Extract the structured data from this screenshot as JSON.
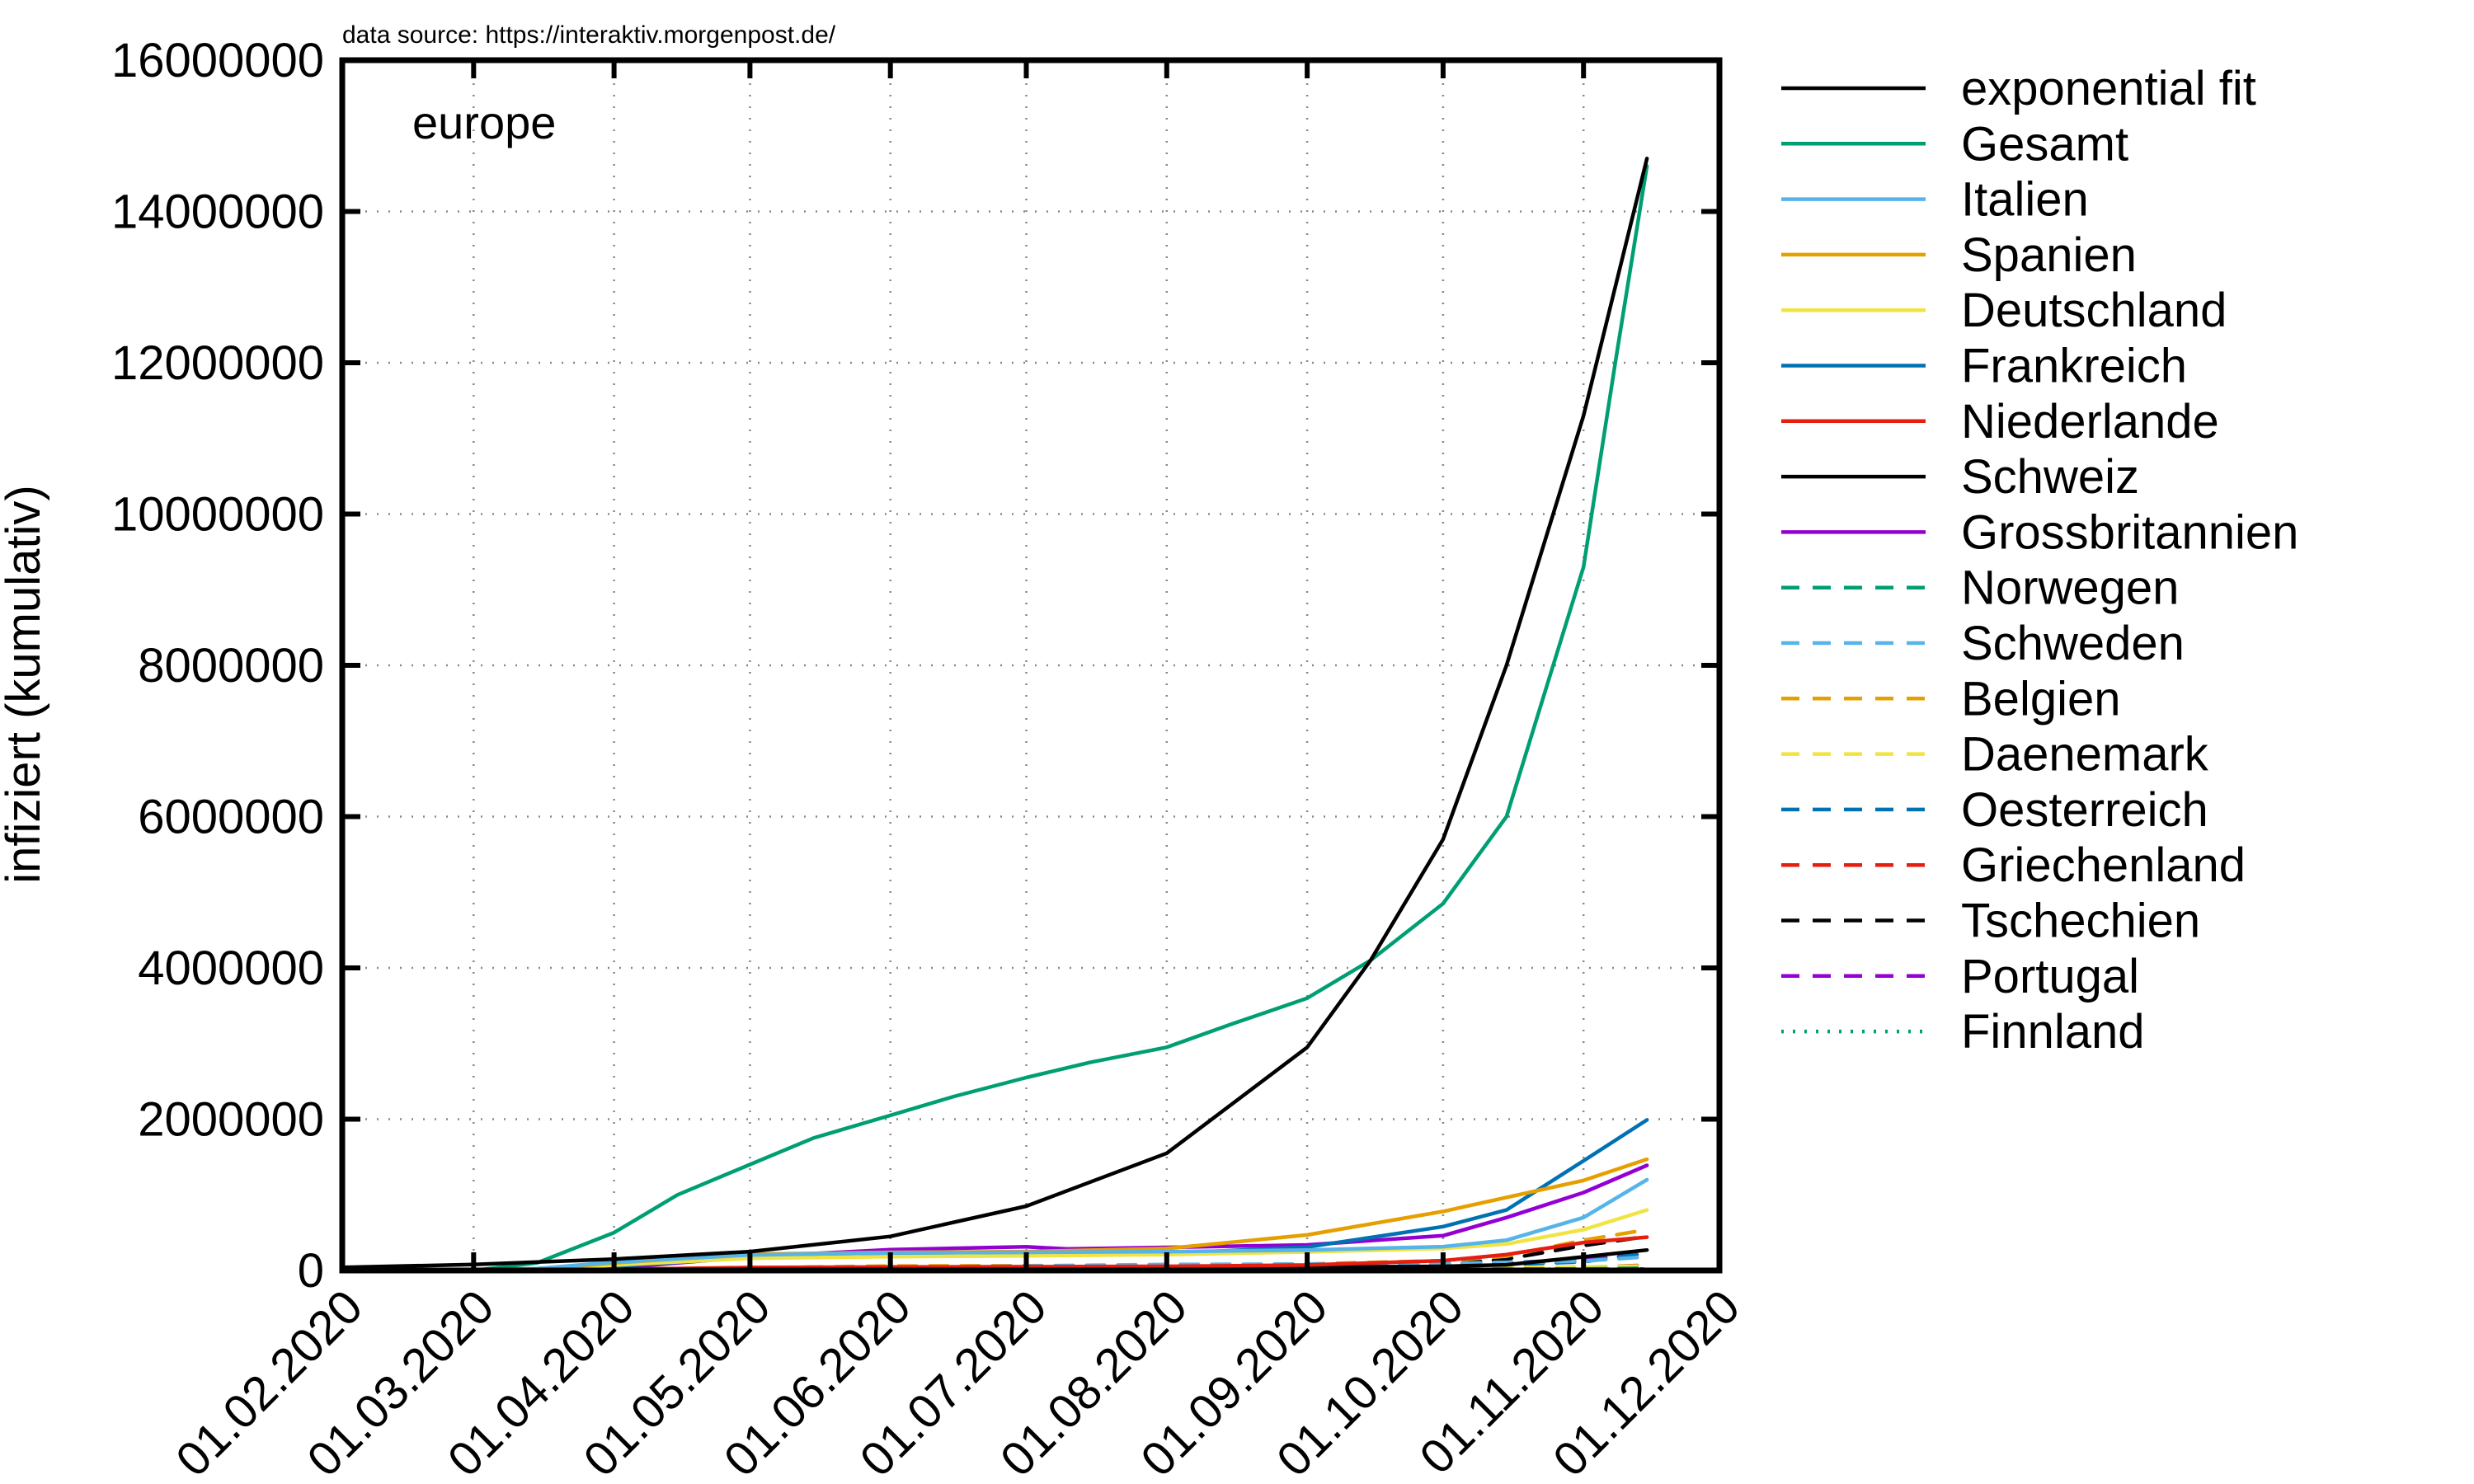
{
  "chart_data": {
    "type": "line",
    "source_note": "data source: https://interaktiv.morgenpost.de/",
    "title": "europe",
    "xlabel": "",
    "ylabel": "infiziert (kumulativ)",
    "ylim": [
      0,
      16000000
    ],
    "xlim": [
      "2020-02-01",
      "2020-12-01"
    ],
    "x_ticks": [
      "01.02.2020",
      "01.03.2020",
      "01.04.2020",
      "01.05.2020",
      "01.06.2020",
      "01.07.2020",
      "01.08.2020",
      "01.09.2020",
      "01.10.2020",
      "01.11.2020",
      "01.12.2020"
    ],
    "y_ticks": [
      "0",
      "2000000",
      "4000000",
      "6000000",
      "8000000",
      "10000000",
      "12000000",
      "14000000",
      "16000000"
    ],
    "grid": true,
    "legend_position": "right",
    "series": [
      {
        "name": "exponential fit",
        "color": "#000000",
        "dash": "solid",
        "points": [
          [
            "2020-02-01",
            40000
          ],
          [
            "2020-03-01",
            80000
          ],
          [
            "2020-04-01",
            150000
          ],
          [
            "2020-05-01",
            250000
          ],
          [
            "2020-06-01",
            450000
          ],
          [
            "2020-07-01",
            850000
          ],
          [
            "2020-08-01",
            1550000
          ],
          [
            "2020-09-01",
            2950000
          ],
          [
            "2020-09-15",
            4100000
          ],
          [
            "2020-10-01",
            5700000
          ],
          [
            "2020-10-15",
            8000000
          ],
          [
            "2020-11-01",
            11300000
          ],
          [
            "2020-11-15",
            14700000
          ]
        ]
      },
      {
        "name": "Gesamt",
        "color": "#009e73",
        "dash": "solid",
        "points": [
          [
            "2020-03-01",
            0
          ],
          [
            "2020-03-15",
            100000
          ],
          [
            "2020-04-01",
            500000
          ],
          [
            "2020-04-15",
            1000000
          ],
          [
            "2020-05-01",
            1400000
          ],
          [
            "2020-05-15",
            1750000
          ],
          [
            "2020-06-01",
            2050000
          ],
          [
            "2020-06-15",
            2300000
          ],
          [
            "2020-07-01",
            2550000
          ],
          [
            "2020-07-15",
            2750000
          ],
          [
            "2020-08-01",
            2950000
          ],
          [
            "2020-08-15",
            3250000
          ],
          [
            "2020-09-01",
            3600000
          ],
          [
            "2020-09-15",
            4100000
          ],
          [
            "2020-10-01",
            4850000
          ],
          [
            "2020-10-15",
            6000000
          ],
          [
            "2020-11-01",
            9300000
          ],
          [
            "2020-11-08",
            12000000
          ],
          [
            "2020-11-15",
            14600000
          ]
        ]
      },
      {
        "name": "Italien",
        "color": "#56b4e9",
        "dash": "solid",
        "points": [
          [
            "2020-02-20",
            0
          ],
          [
            "2020-03-15",
            25000
          ],
          [
            "2020-04-01",
            110000
          ],
          [
            "2020-05-01",
            205000
          ],
          [
            "2020-06-01",
            233000
          ],
          [
            "2020-07-01",
            240000
          ],
          [
            "2020-08-01",
            248000
          ],
          [
            "2020-09-01",
            270000
          ],
          [
            "2020-10-01",
            315000
          ],
          [
            "2020-10-15",
            400000
          ],
          [
            "2020-11-01",
            700000
          ],
          [
            "2020-11-15",
            1200000
          ]
        ]
      },
      {
        "name": "Spanien",
        "color": "#e69f00",
        "dash": "solid",
        "points": [
          [
            "2020-02-20",
            0
          ],
          [
            "2020-03-15",
            8000
          ],
          [
            "2020-04-01",
            100000
          ],
          [
            "2020-05-01",
            215000
          ],
          [
            "2020-06-01",
            240000
          ],
          [
            "2020-07-01",
            250000
          ],
          [
            "2020-08-01",
            290000
          ],
          [
            "2020-09-01",
            470000
          ],
          [
            "2020-10-01",
            780000
          ],
          [
            "2020-11-01",
            1190000
          ],
          [
            "2020-11-15",
            1470000
          ]
        ]
      },
      {
        "name": "Deutschland",
        "color": "#f0e442",
        "dash": "solid",
        "points": [
          [
            "2020-02-20",
            0
          ],
          [
            "2020-03-15",
            5000
          ],
          [
            "2020-04-01",
            72000
          ],
          [
            "2020-05-01",
            160000
          ],
          [
            "2020-06-01",
            182000
          ],
          [
            "2020-07-01",
            194000
          ],
          [
            "2020-08-01",
            210000
          ],
          [
            "2020-09-01",
            245000
          ],
          [
            "2020-10-01",
            291000
          ],
          [
            "2020-10-15",
            350000
          ],
          [
            "2020-11-01",
            540000
          ],
          [
            "2020-11-15",
            800000
          ]
        ]
      },
      {
        "name": "Frankreich",
        "color": "#0072b2",
        "dash": "solid",
        "points": [
          [
            "2020-02-20",
            0
          ],
          [
            "2020-03-15",
            5000
          ],
          [
            "2020-04-01",
            57000
          ],
          [
            "2020-05-01",
            168000
          ],
          [
            "2020-06-01",
            189000
          ],
          [
            "2020-07-01",
            203000
          ],
          [
            "2020-08-01",
            225000
          ],
          [
            "2020-09-01",
            310000
          ],
          [
            "2020-10-01",
            580000
          ],
          [
            "2020-10-15",
            800000
          ],
          [
            "2020-11-01",
            1450000
          ],
          [
            "2020-11-15",
            1990000
          ]
        ]
      },
      {
        "name": "Niederlande",
        "color": "#e51e10",
        "dash": "solid",
        "points": [
          [
            "2020-02-20",
            0
          ],
          [
            "2020-04-01",
            13000
          ],
          [
            "2020-05-01",
            39000
          ],
          [
            "2020-06-01",
            47000
          ],
          [
            "2020-07-01",
            50000
          ],
          [
            "2020-08-01",
            55000
          ],
          [
            "2020-09-01",
            72000
          ],
          [
            "2020-10-01",
            130000
          ],
          [
            "2020-10-15",
            210000
          ],
          [
            "2020-11-01",
            370000
          ],
          [
            "2020-11-15",
            440000
          ]
        ]
      },
      {
        "name": "Schweiz",
        "color": "#000000",
        "dash": "solid",
        "points": [
          [
            "2020-02-20",
            0
          ],
          [
            "2020-04-01",
            17000
          ],
          [
            "2020-05-01",
            30000
          ],
          [
            "2020-06-01",
            31000
          ],
          [
            "2020-07-01",
            32000
          ],
          [
            "2020-08-01",
            35000
          ],
          [
            "2020-09-01",
            42000
          ],
          [
            "2020-10-01",
            54000
          ],
          [
            "2020-10-15",
            75000
          ],
          [
            "2020-11-01",
            180000
          ],
          [
            "2020-11-15",
            270000
          ]
        ]
      },
      {
        "name": "Grossbritannien",
        "color": "#9400d3",
        "dash": "solid",
        "points": [
          [
            "2020-02-20",
            0
          ],
          [
            "2020-03-15",
            2000
          ],
          [
            "2020-04-01",
            30000
          ],
          [
            "2020-05-01",
            180000
          ],
          [
            "2020-06-01",
            276000
          ],
          [
            "2020-07-01",
            313000
          ],
          [
            "2020-07-10",
            285000
          ],
          [
            "2020-08-01",
            305000
          ],
          [
            "2020-09-01",
            338000
          ],
          [
            "2020-10-01",
            460000
          ],
          [
            "2020-10-15",
            700000
          ],
          [
            "2020-11-01",
            1030000
          ],
          [
            "2020-11-15",
            1390000
          ]
        ]
      },
      {
        "name": "Norwegen",
        "color": "#009e73",
        "dash": "dashed",
        "points": [
          [
            "2020-02-20",
            0
          ],
          [
            "2020-04-01",
            4500
          ],
          [
            "2020-06-01",
            8400
          ],
          [
            "2020-09-01",
            11000
          ],
          [
            "2020-10-01",
            14000
          ],
          [
            "2020-11-01",
            20000
          ],
          [
            "2020-11-15",
            30000
          ]
        ]
      },
      {
        "name": "Schweden",
        "color": "#56b4e9",
        "dash": "dashed",
        "points": [
          [
            "2020-02-20",
            0
          ],
          [
            "2020-04-01",
            4500
          ],
          [
            "2020-06-01",
            38000
          ],
          [
            "2020-08-01",
            80000
          ],
          [
            "2020-09-01",
            84000
          ],
          [
            "2020-10-01",
            93000
          ],
          [
            "2020-11-01",
            125000
          ],
          [
            "2020-11-15",
            180000
          ]
        ]
      },
      {
        "name": "Belgien",
        "color": "#e69f00",
        "dash": "dashed",
        "points": [
          [
            "2020-02-20",
            0
          ],
          [
            "2020-04-01",
            13000
          ],
          [
            "2020-06-01",
            58000
          ],
          [
            "2020-08-01",
            69000
          ],
          [
            "2020-09-01",
            85000
          ],
          [
            "2020-10-01",
            130000
          ],
          [
            "2020-10-15",
            190000
          ],
          [
            "2020-11-01",
            400000
          ],
          [
            "2020-11-15",
            540000
          ]
        ]
      },
      {
        "name": "Daenemark",
        "color": "#f0e442",
        "dash": "dashed",
        "points": [
          [
            "2020-02-20",
            0
          ],
          [
            "2020-04-01",
            3000
          ],
          [
            "2020-06-01",
            11800
          ],
          [
            "2020-09-01",
            17000
          ],
          [
            "2020-10-01",
            28000
          ],
          [
            "2020-11-01",
            47000
          ],
          [
            "2020-11-15",
            60000
          ]
        ]
      },
      {
        "name": "Oesterreich",
        "color": "#0072b2",
        "dash": "dashed",
        "points": [
          [
            "2020-02-20",
            0
          ],
          [
            "2020-04-01",
            11000
          ],
          [
            "2020-06-01",
            16700
          ],
          [
            "2020-09-01",
            27000
          ],
          [
            "2020-10-01",
            45000
          ],
          [
            "2020-11-01",
            115000
          ],
          [
            "2020-11-15",
            230000
          ]
        ]
      },
      {
        "name": "Griechenland",
        "color": "#e51e10",
        "dash": "dashed",
        "points": [
          [
            "2020-02-20",
            0
          ],
          [
            "2020-04-01",
            1300
          ],
          [
            "2020-06-01",
            2900
          ],
          [
            "2020-09-01",
            10000
          ],
          [
            "2020-10-01",
            19000
          ],
          [
            "2020-11-01",
            40000
          ],
          [
            "2020-11-15",
            70000
          ]
        ]
      },
      {
        "name": "Tschechien",
        "color": "#000000",
        "dash": "dashed",
        "points": [
          [
            "2020-02-20",
            0
          ],
          [
            "2020-04-01",
            3300
          ],
          [
            "2020-06-01",
            9300
          ],
          [
            "2020-09-01",
            24000
          ],
          [
            "2020-10-01",
            75000
          ],
          [
            "2020-10-15",
            150000
          ],
          [
            "2020-11-01",
            330000
          ],
          [
            "2020-11-15",
            450000
          ]
        ]
      },
      {
        "name": "Portugal",
        "color": "#9400d3",
        "dash": "dashed",
        "points": [
          [
            "2020-02-20",
            0
          ],
          [
            "2020-04-01",
            8000
          ],
          [
            "2020-06-01",
            33000
          ],
          [
            "2020-09-01",
            58000
          ],
          [
            "2020-10-01",
            77000
          ],
          [
            "2020-11-01",
            140000
          ],
          [
            "2020-11-15",
            225000
          ]
        ]
      },
      {
        "name": "Finnland",
        "color": "#009e73",
        "dash": "dotted",
        "points": [
          [
            "2020-02-20",
            0
          ],
          [
            "2020-04-01",
            1400
          ],
          [
            "2020-06-01",
            6900
          ],
          [
            "2020-09-01",
            8200
          ],
          [
            "2020-10-01",
            10500
          ],
          [
            "2020-11-01",
            16000
          ],
          [
            "2020-11-15",
            20000
          ]
        ]
      }
    ]
  }
}
